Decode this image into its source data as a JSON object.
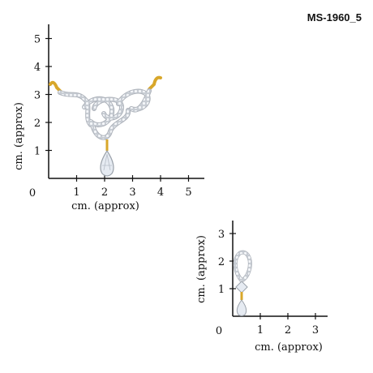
{
  "product_code": "MS-1960_5",
  "colors": {
    "gold": "#d8a72a",
    "metal": "#b9bec6",
    "stone": "#e6ebf2",
    "axis": "#111111"
  },
  "rulers": {
    "pendant": {
      "x_label": "cm. (approx)",
      "y_label": "cm. (approx)",
      "origin": "0",
      "x_ticks": [
        "1",
        "2",
        "3",
        "4",
        "5"
      ],
      "y_ticks": [
        "1",
        "2",
        "3",
        "4",
        "5"
      ]
    },
    "earring": {
      "x_label": "cm. (approx)",
      "y_label": "cm. (approx)",
      "origin": "0",
      "x_ticks": [
        "1",
        "2",
        "3"
      ],
      "y_ticks": [
        "1",
        "2",
        "3"
      ]
    }
  },
  "objects": {
    "pendant": "mangalsutra-pendant",
    "earring": "drop-earring"
  }
}
